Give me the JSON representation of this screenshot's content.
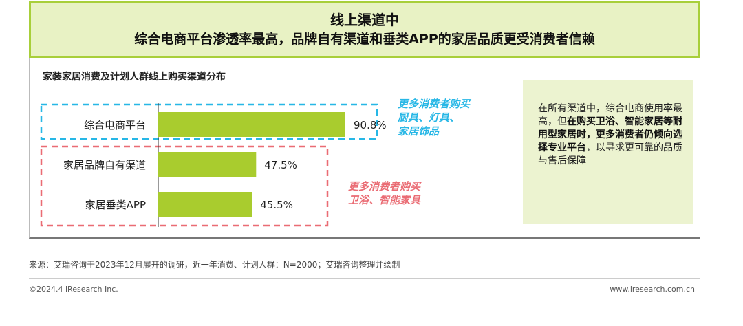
{
  "header": {
    "title_line1": "线上渠道中",
    "title_line2": "综合电商平台渗透率最高，品牌自有渠道和垂类APP的家居品质更受消费者信赖"
  },
  "chart_data": {
    "type": "bar",
    "orientation": "horizontal",
    "title": "家装家居消费及计划人群线上购买渠道分布",
    "categories": [
      "综合电商平台",
      "家居品牌自有渠道",
      "家居垂类APP"
    ],
    "values": [
      90.8,
      47.5,
      45.5
    ],
    "value_labels": [
      "90.8%",
      "47.5%",
      "45.5%"
    ],
    "xlim": [
      0,
      100
    ],
    "grid": false,
    "colors": {
      "bar": "#a9cc2e",
      "cyan": "#27b7e6",
      "pink": "#ea6c74"
    },
    "annotations": [
      {
        "text": "更多消费者购买\n厨具、灯具、\n家居饰品",
        "color": "#27b7e6"
      },
      {
        "text": "更多消费者购买\n卫浴、智能家具",
        "color": "#ea6c74"
      }
    ]
  },
  "insight": {
    "part1": "在所有渠道中，综合电商使用率最高，但",
    "bold1": "在购买卫浴、智能家居等耐用型家居时，更多消费者仍倾向选择专业平台",
    "part2": "，以寻求更可靠的品质与售后保障"
  },
  "footer": {
    "source": "来源：艾瑞咨询于2023年12月展开的调研，近一年消费、计划人群：N=2000；艾瑞咨询整理并绘制",
    "copyright": "©2024.4 iResearch Inc.",
    "website": "www.iresearch.com.cn"
  }
}
